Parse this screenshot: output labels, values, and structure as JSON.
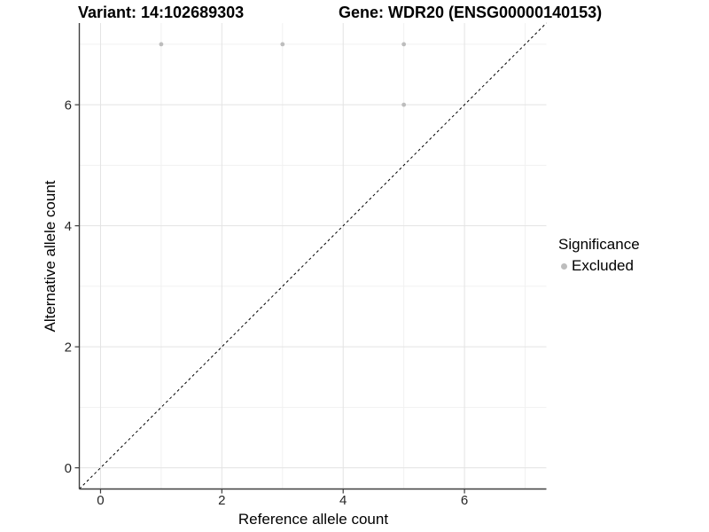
{
  "chart_data": {
    "type": "scatter",
    "title_left": "Variant: 14:102689303",
    "title_right": "Gene: WDR20 (ENSG00000140153)",
    "xlabel": "Reference allele count",
    "ylabel": "Alternative allele count",
    "xlim": [
      -0.35,
      7.35
    ],
    "ylim": [
      -0.35,
      7.35
    ],
    "x_major_ticks": [
      0,
      2,
      4,
      6
    ],
    "x_minor_gridlines": [
      1,
      3,
      5,
      7
    ],
    "y_major_ticks": [
      0,
      2,
      4,
      6
    ],
    "y_minor_gridlines": [
      1,
      3,
      5,
      7
    ],
    "grid": "on",
    "legend": {
      "position": "right",
      "title": "Significance",
      "items": [
        {
          "label": "Excluded",
          "color": "#bdbdbd"
        }
      ]
    },
    "series": [
      {
        "name": "Excluded",
        "color": "#bdbdbd",
        "points": [
          [
            1,
            7
          ],
          [
            3,
            7
          ],
          [
            5,
            7
          ],
          [
            5,
            6
          ]
        ]
      }
    ],
    "identity_line": {
      "style": "dashed",
      "from": [
        -0.35,
        -0.35
      ],
      "to": [
        7.35,
        7.35
      ],
      "color": "#000000"
    },
    "colors": {
      "grid_major": "#e3e3e3",
      "grid_minor": "#f1f1f1",
      "axis_line": "#3f3f3f",
      "tick_label": "#262626",
      "point": "#bdbdbd"
    }
  }
}
